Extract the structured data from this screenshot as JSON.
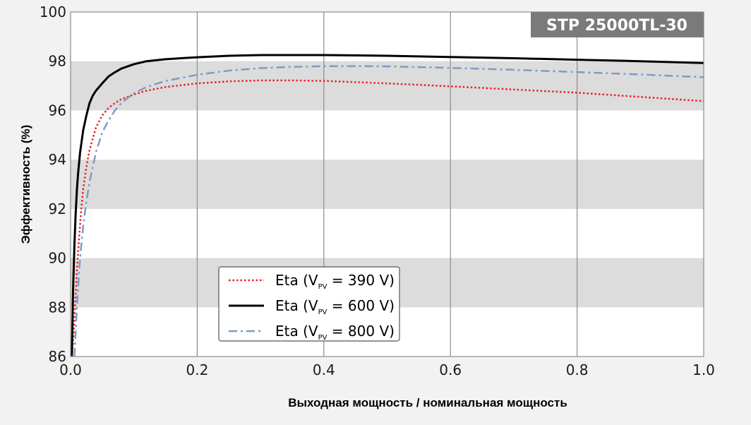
{
  "chart_data": {
    "type": "line",
    "model_badge": "STP 25000TL-30",
    "xlabel": "Выходная мощность / номинальная мощность",
    "ylabel": "Эффективность (%)",
    "xlim": [
      0.0,
      1.0
    ],
    "ylim": [
      86,
      100
    ],
    "x_ticks": [
      "0.0",
      "0.2",
      "0.4",
      "0.6",
      "0.8",
      "1.0"
    ],
    "y_ticks": [
      "86",
      "88",
      "90",
      "92",
      "94",
      "96",
      "98",
      "100"
    ],
    "grid": "vertical lines, alternating gray horizontal bands",
    "legend_position": "bottom-center",
    "series": [
      {
        "name": "Eta (VPV = 390 V)",
        "label_prefix": "Eta (V",
        "label_sub": "PV",
        "label_suffix": " = 390 V)",
        "color": "#e8202a",
        "style": "dotted",
        "x": [
          0.002,
          0.005,
          0.008,
          0.01,
          0.013,
          0.017,
          0.02,
          0.025,
          0.03,
          0.04,
          0.05,
          0.06,
          0.07,
          0.08,
          0.1,
          0.12,
          0.15,
          0.2,
          0.25,
          0.3,
          0.35,
          0.4,
          0.5,
          0.6,
          0.7,
          0.8,
          0.9,
          1.0
        ],
        "y": [
          86.0,
          87.0,
          88.5,
          89.5,
          90.7,
          92.0,
          92.8,
          93.7,
          94.4,
          95.3,
          95.8,
          96.1,
          96.3,
          96.45,
          96.65,
          96.8,
          96.95,
          97.1,
          97.18,
          97.22,
          97.22,
          97.2,
          97.1,
          96.98,
          96.85,
          96.72,
          96.55,
          96.38
        ]
      },
      {
        "name": "Eta (VPV = 600 V)",
        "label_prefix": "Eta (V",
        "label_sub": "PV",
        "label_suffix": " = 600 V)",
        "color": "#000000",
        "style": "solid",
        "x": [
          0.002,
          0.004,
          0.006,
          0.008,
          0.01,
          0.012,
          0.015,
          0.02,
          0.025,
          0.03,
          0.035,
          0.04,
          0.05,
          0.06,
          0.07,
          0.08,
          0.1,
          0.12,
          0.15,
          0.2,
          0.25,
          0.3,
          0.4,
          0.5,
          0.6,
          0.7,
          0.8,
          0.9,
          1.0
        ],
        "y": [
          86.0,
          88.8,
          90.5,
          91.8,
          92.8,
          93.5,
          94.3,
          95.2,
          95.8,
          96.3,
          96.6,
          96.8,
          97.1,
          97.38,
          97.55,
          97.7,
          97.88,
          98.0,
          98.08,
          98.16,
          98.22,
          98.25,
          98.25,
          98.22,
          98.17,
          98.12,
          98.06,
          98.0,
          97.93
        ]
      },
      {
        "name": "Eta (VPV = 800 V)",
        "label_prefix": "Eta (V",
        "label_sub": "PV",
        "label_suffix": " = 800 V)",
        "color": "#7f9bc6",
        "style": "dashdot",
        "x": [
          0.006,
          0.008,
          0.01,
          0.013,
          0.016,
          0.02,
          0.025,
          0.03,
          0.04,
          0.05,
          0.06,
          0.07,
          0.08,
          0.1,
          0.12,
          0.15,
          0.2,
          0.25,
          0.3,
          0.35,
          0.4,
          0.45,
          0.5,
          0.6,
          0.7,
          0.8,
          0.9,
          1.0
        ],
        "y": [
          86.0,
          87.0,
          88.0,
          89.3,
          90.3,
          91.3,
          92.3,
          93.1,
          94.3,
          95.1,
          95.6,
          96.0,
          96.3,
          96.7,
          96.95,
          97.2,
          97.45,
          97.62,
          97.72,
          97.77,
          97.8,
          97.8,
          97.79,
          97.73,
          97.65,
          97.56,
          97.46,
          97.35
        ]
      }
    ]
  }
}
